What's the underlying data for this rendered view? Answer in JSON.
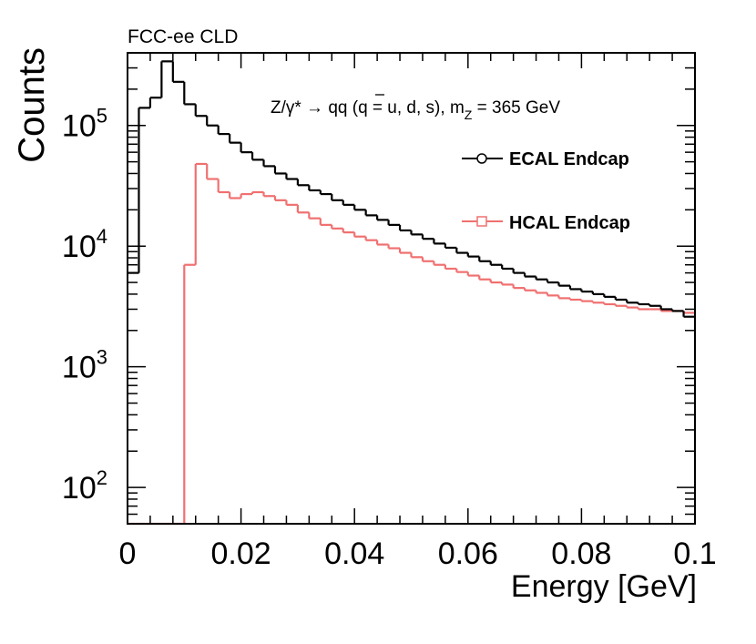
{
  "chart_data": {
    "type": "histogram",
    "experiment_label": "FCC-ee CLD",
    "process_label": {
      "lhs": "Z/γ* → q",
      "qbar": "q",
      "rhs": " (q = u, d, s), m",
      "sub": "Z",
      "tail": " = 365 GeV"
    },
    "xlabel": "Energy [GeV]",
    "ylabel": "Counts",
    "xlim": [
      0,
      0.1
    ],
    "ylim": [
      50,
      400000
    ],
    "yscale": "log",
    "x_ticks": [
      {
        "value": 0,
        "label": "0"
      },
      {
        "value": 0.02,
        "label": "0.02"
      },
      {
        "value": 0.04,
        "label": "0.04"
      },
      {
        "value": 0.06,
        "label": "0.06"
      },
      {
        "value": 0.08,
        "label": "0.08"
      },
      {
        "value": 0.1,
        "label": "0.1"
      }
    ],
    "y_ticks": [
      {
        "value": 100,
        "base": "10",
        "exp": "2"
      },
      {
        "value": 1000,
        "base": "10",
        "exp": "3"
      },
      {
        "value": 10000,
        "base": "10",
        "exp": "4"
      },
      {
        "value": 100000,
        "base": "10",
        "exp": "5"
      }
    ],
    "bin_width": 0.002,
    "series": [
      {
        "name": "ECAL Endcap",
        "color": "#000000",
        "marker": "circle",
        "values": [
          6000,
          140000,
          170000,
          340000,
          230000,
          150000,
          120000,
          100000,
          85000,
          72000,
          60000,
          52000,
          46000,
          40000,
          36000,
          32000,
          29000,
          27000,
          24000,
          22000,
          20000,
          18000,
          16500,
          15000,
          13500,
          12500,
          11500,
          10500,
          9700,
          8800,
          8200,
          7500,
          7000,
          6500,
          6000,
          5600,
          5300,
          5000,
          4700,
          4400,
          4200,
          4000,
          3800,
          3600,
          3400,
          3300,
          3200,
          3000,
          2900,
          2600
        ]
      },
      {
        "name": "HCAL Endcap",
        "color": "#f07070",
        "marker": "square",
        "values": [
          50,
          50,
          50,
          50,
          50,
          7000,
          48000,
          36000,
          28000,
          25000,
          27000,
          28000,
          26000,
          24000,
          22000,
          19000,
          17000,
          15000,
          14000,
          13000,
          12000,
          11200,
          10300,
          9600,
          8800,
          8100,
          7500,
          7000,
          6500,
          6100,
          5700,
          5300,
          5000,
          4800,
          4500,
          4300,
          4100,
          3900,
          3700,
          3600,
          3500,
          3400,
          3300,
          3200,
          3100,
          3000,
          3000,
          2900,
          2900,
          2800
        ]
      }
    ]
  }
}
